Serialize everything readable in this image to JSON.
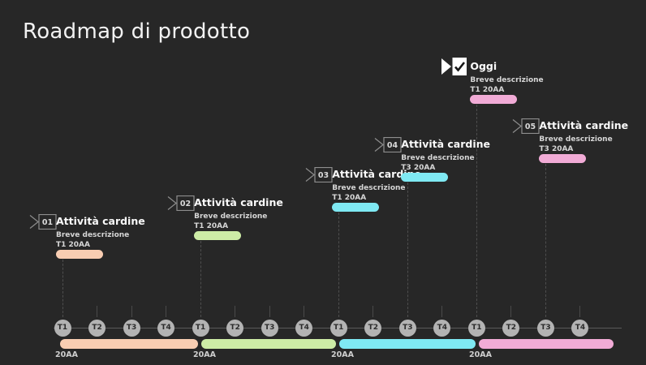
{
  "page": {
    "title": "Roadmap di prodotto"
  },
  "palette": {
    "background": "#272727",
    "peach": "#f8cdb2",
    "green": "#cdeca6",
    "cyan": "#7fe9f3",
    "pink": "#f1abd6",
    "circle_fill": "#b3b3b3",
    "line_gray": "#5a5a5a",
    "marker_outline": "#8e8e8e",
    "today_flag": "#ffffff"
  },
  "milestones": [
    {
      "number": "01",
      "title": "Attività cardine",
      "description": "Breve descrizione",
      "date": "T1 20AA",
      "year_index": 0,
      "quarter_index": 0,
      "color": "#f8cdb2",
      "type": "numbered"
    },
    {
      "number": "02",
      "title": "Attività cardine",
      "description": "Breve descrizione",
      "date": "T1 20AA",
      "year_index": 1,
      "quarter_index": 0,
      "color": "#cdeca6",
      "type": "numbered"
    },
    {
      "number": "03",
      "title": "Attività cardine",
      "description": "Breve descrizione",
      "date": "T1 20AA",
      "year_index": 2,
      "quarter_index": 0,
      "color": "#7fe9f3",
      "type": "numbered"
    },
    {
      "number": "04",
      "title": "Attività cardine",
      "description": "Breve descrizione",
      "date": "T3 20AA",
      "year_index": 2,
      "quarter_index": 2,
      "color": "#7fe9f3",
      "type": "numbered"
    },
    {
      "number": "",
      "title": "Oggi",
      "description": "Breve descrizione",
      "date": "T1 20AA",
      "year_index": 3,
      "quarter_index": 0,
      "color": "#f1abd6",
      "type": "today"
    },
    {
      "number": "05",
      "title": "Attività cardine",
      "description": "Breve descrizione",
      "date": "T3 20AA",
      "year_index": 3,
      "quarter_index": 2,
      "color": "#f1abd6",
      "type": "numbered"
    }
  ],
  "timeline": {
    "quarter_labels": [
      "T1",
      "T2",
      "T3",
      "T4"
    ],
    "years": [
      {
        "label": "20AA",
        "color": "#f8cdb2"
      },
      {
        "label": "20AA",
        "color": "#cdeca6"
      },
      {
        "label": "20AA",
        "color": "#7fe9f3"
      },
      {
        "label": "20AA",
        "color": "#f1abd6"
      }
    ]
  }
}
